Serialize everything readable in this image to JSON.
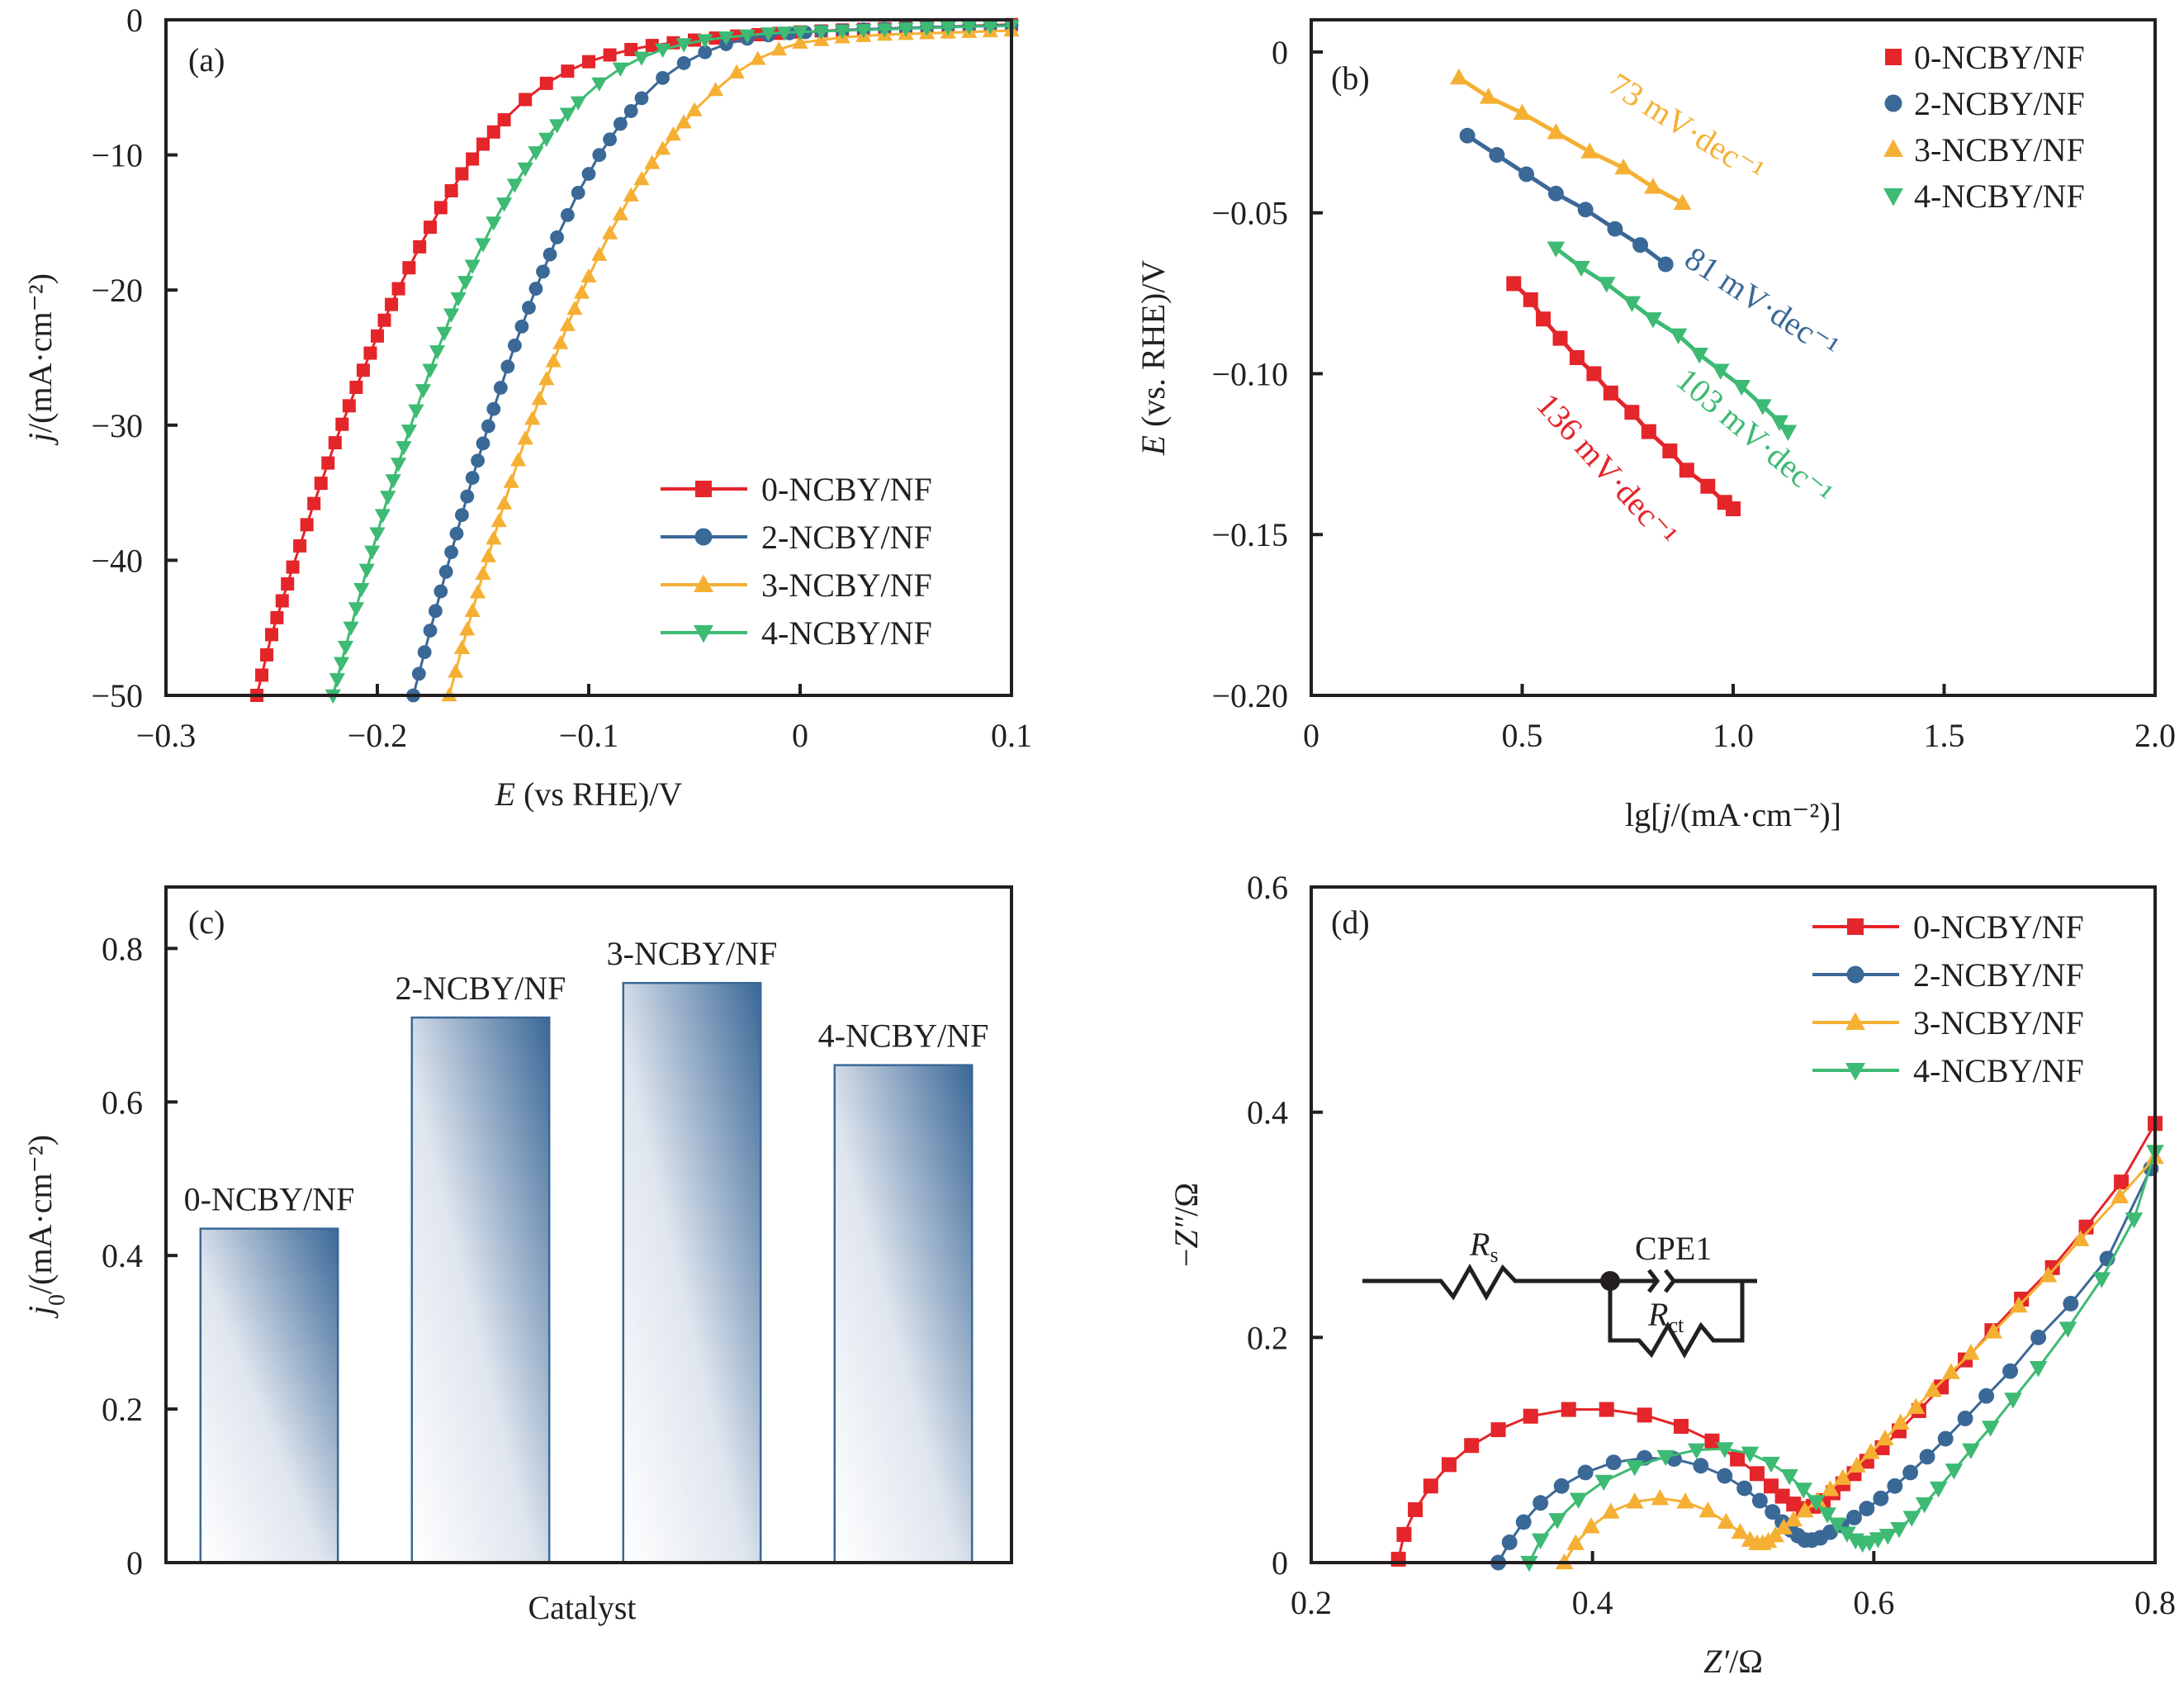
{
  "figure": {
    "series_names": [
      "0-NCBY/NF",
      "2-NCBY/NF",
      "3-NCBY/NF",
      "4-NCBY/NF"
    ],
    "series_colors": [
      "#e4252a",
      "#3a6897",
      "#f5b034",
      "#3dba73"
    ],
    "series_markers": [
      "square",
      "circle",
      "triangle-up",
      "triangle-down"
    ]
  },
  "chart_data": [
    {
      "id": "a",
      "type": "line",
      "panel_label": "(a)",
      "title": "",
      "xlabel_italic": "E",
      "xlabel_rest": " (vs RHE)/V",
      "ylabel_italic": "j",
      "ylabel_rest": "/(mA·cm⁻²)",
      "xlim": [
        -0.3,
        0.1
      ],
      "ylim": [
        -50,
        0
      ],
      "xticks": [
        -0.3,
        -0.2,
        -0.1,
        0,
        0.1
      ],
      "xtick_labels": [
        "−0.3",
        "−0.2",
        "−0.1",
        "0",
        "0.1"
      ],
      "yticks": [
        0,
        -10,
        -20,
        -30,
        -40,
        -50
      ],
      "ytick_labels": [
        "0",
        "−10",
        "−20",
        "−30",
        "−40",
        "−50"
      ],
      "legend": "bottom-right",
      "grid": false,
      "series": [
        {
          "name": "0-NCBY/NF",
          "x": [
            -0.257,
            -0.25,
            -0.24,
            -0.23,
            -0.22,
            -0.21,
            -0.2,
            -0.19,
            -0.18,
            -0.17,
            -0.16,
            -0.15,
            -0.14,
            -0.13,
            -0.12,
            -0.11,
            -0.1,
            -0.09,
            -0.08,
            -0.07,
            -0.06,
            -0.05,
            -0.04,
            -0.03,
            -0.02,
            -0.01,
            0,
            0.02,
            0.04,
            0.06,
            0.08,
            0.1
          ],
          "y": [
            -50,
            -45.5,
            -40.5,
            -35.8,
            -31.3,
            -27.2,
            -23.4,
            -19.9,
            -16.8,
            -13.9,
            -11.4,
            -9.2,
            -7.4,
            -5.9,
            -4.7,
            -3.8,
            -3.1,
            -2.6,
            -2.2,
            -1.9,
            -1.7,
            -1.5,
            -1.35,
            -1.2,
            -1.1,
            -1.0,
            -0.9,
            -0.75,
            -0.65,
            -0.55,
            -0.45,
            -0.35
          ]
        },
        {
          "name": "2-NCBY/NF",
          "x": [
            -0.183,
            -0.175,
            -0.165,
            -0.155,
            -0.145,
            -0.135,
            -0.125,
            -0.115,
            -0.105,
            -0.095,
            -0.085,
            -0.075,
            -0.065,
            -0.055,
            -0.045,
            -0.035,
            -0.025,
            -0.015,
            -0.005,
            0.01,
            0.03,
            0.05,
            0.07,
            0.1
          ],
          "y": [
            -50,
            -45.2,
            -39.4,
            -33.9,
            -28.8,
            -24.1,
            -19.9,
            -16.1,
            -12.8,
            -10.0,
            -7.7,
            -5.8,
            -4.3,
            -3.2,
            -2.4,
            -1.8,
            -1.4,
            -1.15,
            -1.0,
            -0.85,
            -0.7,
            -0.6,
            -0.5,
            -0.4
          ]
        },
        {
          "name": "3-NCBY/NF",
          "x": [
            -0.166,
            -0.16,
            -0.15,
            -0.14,
            -0.13,
            -0.12,
            -0.11,
            -0.1,
            -0.09,
            -0.08,
            -0.07,
            -0.06,
            -0.05,
            -0.04,
            -0.03,
            -0.02,
            -0.01,
            0,
            0.02,
            0.04,
            0.06,
            0.08,
            0.1
          ],
          "y": [
            -50,
            -46.5,
            -41.0,
            -35.8,
            -31.0,
            -26.6,
            -22.6,
            -19.0,
            -15.8,
            -13.0,
            -10.6,
            -8.5,
            -6.7,
            -5.2,
            -3.9,
            -2.9,
            -2.2,
            -1.7,
            -1.3,
            -1.1,
            -1.0,
            -0.9,
            -0.8
          ]
        },
        {
          "name": "4-NCBY/NF",
          "x": [
            -0.221,
            -0.215,
            -0.205,
            -0.195,
            -0.185,
            -0.175,
            -0.165,
            -0.155,
            -0.145,
            -0.135,
            -0.125,
            -0.115,
            -0.105,
            -0.095,
            -0.085,
            -0.075,
            -0.065,
            -0.055,
            -0.045,
            -0.035,
            -0.025,
            -0.015,
            0,
            0.02,
            0.04,
            0.06,
            0.08,
            0.1
          ],
          "y": [
            -50,
            -46.4,
            -40.7,
            -35.3,
            -30.4,
            -25.9,
            -21.8,
            -18.2,
            -15.0,
            -12.2,
            -9.8,
            -7.8,
            -6.1,
            -4.7,
            -3.6,
            -2.8,
            -2.2,
            -1.8,
            -1.5,
            -1.3,
            -1.15,
            -1.0,
            -0.9,
            -0.8,
            -0.7,
            -0.6,
            -0.5,
            -0.45
          ]
        }
      ]
    },
    {
      "id": "b",
      "type": "line",
      "panel_label": "(b)",
      "xlabel": "lg[j/(mA·cm⁻²)]",
      "xlabel_pre": "lg[",
      "xlabel_italic": "j",
      "xlabel_post": "/(mA·cm⁻²)]",
      "ylabel_italic": "E",
      "ylabel_rest": " (vs. RHE)/V",
      "xlim": [
        0,
        2.0
      ],
      "ylim": [
        -0.2,
        0.01
      ],
      "xticks": [
        0,
        0.5,
        1.0,
        1.5,
        2.0
      ],
      "xtick_labels": [
        "0",
        "0.5",
        "1.0",
        "1.5",
        "2.0"
      ],
      "yticks": [
        0,
        -0.05,
        -0.1,
        -0.15,
        -0.2
      ],
      "ytick_labels": [
        "0",
        "−0.05",
        "−0.10",
        "−0.15",
        "−0.20"
      ],
      "legend": "top-right",
      "grid": false,
      "annotations": [
        {
          "text": "73 mV·dec⁻¹",
          "series": 2,
          "x": 0.7,
          "y": -0.012,
          "angle": 32
        },
        {
          "text": "81 mV·dec⁻¹",
          "series": 1,
          "x": 0.88,
          "y": -0.066,
          "angle": 33
        },
        {
          "text": "103 mV·dec⁻¹",
          "series": 3,
          "x": 0.86,
          "y": -0.103,
          "angle": 40
        },
        {
          "text": "136 mV·dec⁻¹",
          "series": 0,
          "x": 0.53,
          "y": -0.11,
          "angle": 48
        }
      ],
      "series": [
        {
          "name": "0-NCBY/NF",
          "x": [
            0.48,
            0.52,
            0.55,
            0.59,
            0.63,
            0.67,
            0.71,
            0.76,
            0.8,
            0.85,
            0.89,
            0.94,
            0.98,
            1.0
          ],
          "y": [
            -0.072,
            -0.077,
            -0.083,
            -0.089,
            -0.095,
            -0.1,
            -0.106,
            -0.112,
            -0.118,
            -0.124,
            -0.13,
            -0.135,
            -0.14,
            -0.142
          ]
        },
        {
          "name": "2-NCBY/NF",
          "x": [
            0.37,
            0.44,
            0.51,
            0.58,
            0.65,
            0.72,
            0.78,
            0.84
          ],
          "y": [
            -0.026,
            -0.032,
            -0.038,
            -0.044,
            -0.049,
            -0.055,
            -0.06,
            -0.066
          ]
        },
        {
          "name": "3-NCBY/NF",
          "x": [
            0.35,
            0.42,
            0.5,
            0.58,
            0.66,
            0.74,
            0.81,
            0.88
          ],
          "y": [
            -0.008,
            -0.014,
            -0.019,
            -0.025,
            -0.031,
            -0.036,
            -0.042,
            -0.047
          ]
        },
        {
          "name": "4-NCBY/NF",
          "x": [
            0.58,
            0.64,
            0.7,
            0.76,
            0.81,
            0.87,
            0.92,
            0.97,
            1.02,
            1.07,
            1.11,
            1.13
          ],
          "y": [
            -0.061,
            -0.067,
            -0.072,
            -0.078,
            -0.083,
            -0.088,
            -0.094,
            -0.099,
            -0.104,
            -0.11,
            -0.115,
            -0.118
          ]
        }
      ]
    },
    {
      "id": "c",
      "type": "bar",
      "panel_label": "(c)",
      "xlabel": "Catalyst",
      "ylabel_italic": "j",
      "ylabel_sub": "0",
      "ylabel_rest": "/(mA·cm⁻²)",
      "ylim": [
        0,
        0.88
      ],
      "yticks": [
        0,
        0.2,
        0.4,
        0.6,
        0.8
      ],
      "ytick_labels": [
        "0",
        "0.2",
        "0.4",
        "0.6",
        "0.8"
      ],
      "categories": [
        "0-NCBY/NF",
        "2-NCBY/NF",
        "3-NCBY/NF",
        "4-NCBY/NF"
      ],
      "values": [
        0.435,
        0.71,
        0.755,
        0.648
      ],
      "bar_color": "#3a6897",
      "grid": false
    },
    {
      "id": "d",
      "type": "line",
      "panel_label": "(d)",
      "xlabel_italic": "Z′",
      "xlabel_rest": "/Ω",
      "ylabel_italic": "Z″",
      "ylabel_pre": "−",
      "ylabel_rest": "/Ω",
      "xlim": [
        0.2,
        0.8
      ],
      "ylim": [
        0,
        0.6
      ],
      "xticks": [
        0.2,
        0.4,
        0.6,
        0.8
      ],
      "xtick_labels": [
        "0.2",
        "0.4",
        "0.6",
        "0.8"
      ],
      "yticks": [
        0,
        0.2,
        0.4,
        0.6
      ],
      "ytick_labels": [
        "0",
        "0.2",
        "0.4",
        "0.6"
      ],
      "legend": "top-right",
      "grid": false,
      "inset": {
        "type": "equivalent-circuit",
        "components": [
          "R_s",
          "CPE1",
          "R_ct"
        ],
        "rs_main": "R",
        "rs_sub": "s",
        "cpe_label": "CPE1",
        "rct_main": "R",
        "rct_sub": "ct"
      },
      "series": [
        {
          "name": "0-NCBY/NF",
          "x": [
            0.262,
            0.266,
            0.274,
            0.285,
            0.298,
            0.314,
            0.333,
            0.356,
            0.383,
            0.41,
            0.437,
            0.463,
            0.485,
            0.503,
            0.517,
            0.527,
            0.535,
            0.543,
            0.55,
            0.557,
            0.564,
            0.571,
            0.578,
            0.586,
            0.595,
            0.606,
            0.618,
            0.632,
            0.648,
            0.665,
            0.684,
            0.705,
            0.727,
            0.751,
            0.776,
            0.8
          ],
          "y": [
            0.003,
            0.025,
            0.047,
            0.068,
            0.087,
            0.104,
            0.118,
            0.13,
            0.136,
            0.136,
            0.131,
            0.121,
            0.108,
            0.092,
            0.079,
            0.068,
            0.059,
            0.052,
            0.048,
            0.05,
            0.055,
            0.062,
            0.07,
            0.079,
            0.09,
            0.102,
            0.117,
            0.135,
            0.156,
            0.18,
            0.206,
            0.234,
            0.262,
            0.298,
            0.338,
            0.39
          ]
        },
        {
          "name": "2-NCBY/NF",
          "x": [
            0.333,
            0.341,
            0.351,
            0.363,
            0.378,
            0.395,
            0.415,
            0.437,
            0.458,
            0.477,
            0.494,
            0.508,
            0.519,
            0.528,
            0.535,
            0.541,
            0.546,
            0.551,
            0.556,
            0.562,
            0.569,
            0.577,
            0.586,
            0.595,
            0.605,
            0.615,
            0.626,
            0.638,
            0.651,
            0.665,
            0.68,
            0.697,
            0.717,
            0.74,
            0.766,
            0.797
          ],
          "y": [
            0.0,
            0.018,
            0.036,
            0.053,
            0.068,
            0.08,
            0.089,
            0.093,
            0.092,
            0.086,
            0.077,
            0.066,
            0.055,
            0.045,
            0.036,
            0.029,
            0.024,
            0.02,
            0.02,
            0.022,
            0.027,
            0.033,
            0.04,
            0.048,
            0.057,
            0.068,
            0.08,
            0.094,
            0.11,
            0.128,
            0.148,
            0.17,
            0.2,
            0.23,
            0.27,
            0.35
          ]
        },
        {
          "name": "3-NCBY/NF",
          "x": [
            0.38,
            0.388,
            0.399,
            0.413,
            0.43,
            0.448,
            0.466,
            0.482,
            0.495,
            0.505,
            0.512,
            0.517,
            0.521,
            0.525,
            0.53,
            0.536,
            0.543,
            0.551,
            0.56,
            0.569,
            0.578,
            0.588,
            0.598,
            0.608,
            0.619,
            0.63,
            0.642,
            0.655,
            0.669,
            0.685,
            0.703,
            0.724,
            0.747,
            0.775,
            0.8
          ],
          "y": [
            0.0,
            0.017,
            0.032,
            0.045,
            0.054,
            0.057,
            0.054,
            0.046,
            0.036,
            0.027,
            0.02,
            0.017,
            0.017,
            0.019,
            0.024,
            0.031,
            0.038,
            0.046,
            0.055,
            0.065,
            0.075,
            0.086,
            0.098,
            0.11,
            0.124,
            0.138,
            0.153,
            0.169,
            0.186,
            0.205,
            0.228,
            0.255,
            0.287,
            0.325,
            0.36
          ]
        },
        {
          "name": "4-NCBY/NF",
          "x": [
            0.355,
            0.363,
            0.375,
            0.39,
            0.408,
            0.43,
            0.452,
            0.474,
            0.494,
            0.512,
            0.527,
            0.54,
            0.55,
            0.559,
            0.567,
            0.574,
            0.581,
            0.587,
            0.592,
            0.597,
            0.603,
            0.61,
            0.618,
            0.627,
            0.636,
            0.646,
            0.657,
            0.669,
            0.683,
            0.699,
            0.717,
            0.738,
            0.762,
            0.785,
            0.8
          ],
          "y": [
            0.0,
            0.02,
            0.038,
            0.056,
            0.072,
            0.085,
            0.094,
            0.1,
            0.101,
            0.097,
            0.088,
            0.077,
            0.065,
            0.054,
            0.043,
            0.034,
            0.026,
            0.02,
            0.017,
            0.018,
            0.021,
            0.024,
            0.03,
            0.04,
            0.052,
            0.066,
            0.082,
            0.1,
            0.12,
            0.145,
            0.173,
            0.208,
            0.252,
            0.305,
            0.365
          ]
        }
      ]
    }
  ]
}
